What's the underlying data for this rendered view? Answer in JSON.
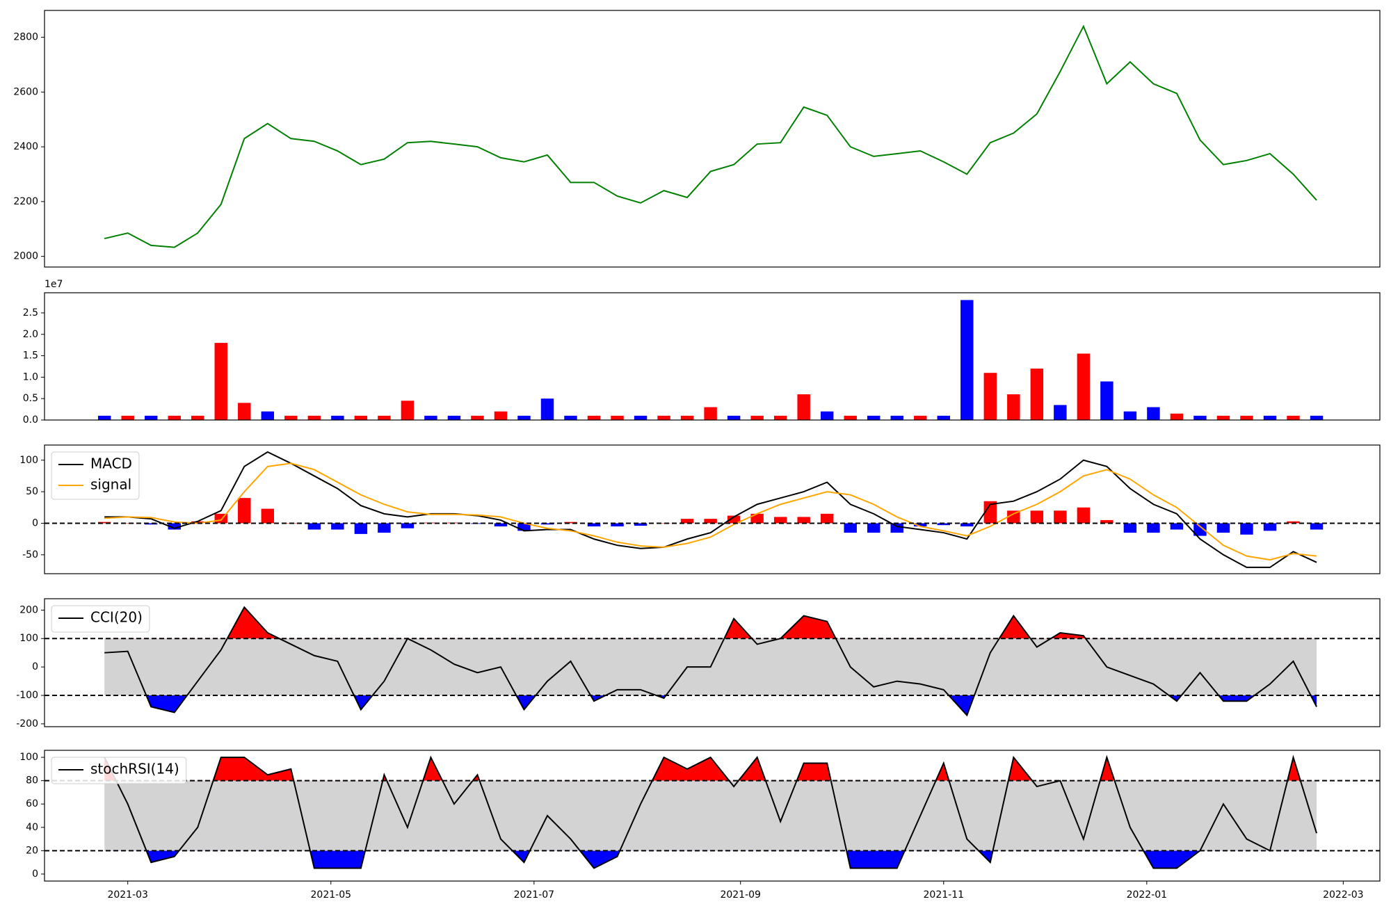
{
  "chart_data": [
    {
      "type": "line",
      "x": [
        "2021-02-22",
        "2021-03-01",
        "2021-03-08",
        "2021-03-15",
        "2021-03-22",
        "2021-03-29",
        "2021-04-05",
        "2021-04-12",
        "2021-04-19",
        "2021-04-26",
        "2021-05-03",
        "2021-05-10",
        "2021-05-17",
        "2021-05-24",
        "2021-05-31",
        "2021-06-07",
        "2021-06-14",
        "2021-06-21",
        "2021-06-28",
        "2021-07-05",
        "2021-07-12",
        "2021-07-19",
        "2021-07-26",
        "2021-08-02",
        "2021-08-09",
        "2021-08-16",
        "2021-08-23",
        "2021-08-30",
        "2021-09-06",
        "2021-09-13",
        "2021-09-20",
        "2021-09-27",
        "2021-10-04",
        "2021-10-11",
        "2021-10-18",
        "2021-10-25",
        "2021-11-01",
        "2021-11-08",
        "2021-11-15",
        "2021-11-22",
        "2021-11-29",
        "2021-12-06",
        "2021-12-13",
        "2021-12-20",
        "2021-12-27",
        "2022-01-03",
        "2022-01-10",
        "2022-01-17",
        "2022-01-24",
        "2022-01-31",
        "2022-02-07",
        "2022-02-14",
        "2022-02-21"
      ],
      "xlim": [
        "2021-02-04",
        "2022-03-12"
      ],
      "ylim": [
        1961,
        2898
      ],
      "yticks": [
        2000,
        2200,
        2400,
        2600,
        2800
      ],
      "series": [
        {
          "color": "green",
          "values": [
            2065,
            2085,
            2040,
            2033,
            2085,
            2190,
            2430,
            2485,
            2430,
            2420,
            2385,
            2335,
            2355,
            2415,
            2420,
            2410,
            2400,
            2360,
            2345,
            2370,
            2270,
            2270,
            2220,
            2195,
            2240,
            2215,
            2310,
            2335,
            2410,
            2415,
            2545,
            2515,
            2400,
            2365,
            2375,
            2385,
            2345,
            2300,
            2415,
            2450,
            2520,
            2675,
            2840,
            2630,
            2710,
            2630,
            2595,
            2425,
            2335,
            2350,
            2375,
            2300,
            2205
          ]
        }
      ]
    },
    {
      "type": "bar",
      "x": [
        "2021-02-22",
        "2021-03-01",
        "2021-03-08",
        "2021-03-15",
        "2021-03-22",
        "2021-03-29",
        "2021-04-05",
        "2021-04-12",
        "2021-04-19",
        "2021-04-26",
        "2021-05-03",
        "2021-05-10",
        "2021-05-17",
        "2021-05-24",
        "2021-05-31",
        "2021-06-07",
        "2021-06-14",
        "2021-06-21",
        "2021-06-28",
        "2021-07-05",
        "2021-07-12",
        "2021-07-19",
        "2021-07-26",
        "2021-08-02",
        "2021-08-09",
        "2021-08-16",
        "2021-08-23",
        "2021-08-30",
        "2021-09-06",
        "2021-09-13",
        "2021-09-20",
        "2021-09-27",
        "2021-10-04",
        "2021-10-11",
        "2021-10-18",
        "2021-10-25",
        "2021-11-01",
        "2021-11-08",
        "2021-11-15",
        "2021-11-22",
        "2021-11-29",
        "2021-12-06",
        "2021-12-13",
        "2021-12-20",
        "2021-12-27",
        "2022-01-03",
        "2022-01-10",
        "2022-01-17",
        "2022-01-24",
        "2022-01-31",
        "2022-02-07",
        "2022-02-14",
        "2022-02-21"
      ],
      "xlim": [
        "2021-02-04",
        "2022-03-12"
      ],
      "ylim": [
        0,
        2.97
      ],
      "yticks": [
        {
          "value": 0,
          "label": "0.0"
        },
        {
          "value": 0.5,
          "label": "0.5"
        },
        {
          "value": 1,
          "label": "1.0"
        },
        {
          "value": 1.5,
          "label": "1.5"
        },
        {
          "value": 2,
          "label": "2.0"
        },
        {
          "value": 2.5,
          "label": "2.5"
        }
      ],
      "offset_label": "1e7",
      "series": [
        {
          "kind": "bar",
          "values": [
            0.1,
            0.1,
            0.1,
            0.1,
            0.1,
            1.8,
            0.4,
            0.2,
            0.1,
            0.1,
            0.1,
            0.1,
            0.1,
            0.45,
            0.1,
            0.1,
            0.1,
            0.2,
            0.1,
            0.5,
            0.1,
            0.1,
            0.1,
            0.1,
            0.1,
            0.1,
            0.3,
            0.1,
            0.1,
            0.1,
            0.6,
            0.2,
            0.1,
            0.1,
            0.1,
            0.1,
            0.1,
            2.8,
            1.1,
            0.6,
            1.2,
            0.35,
            1.55,
            0.9,
            0.2,
            0.3,
            0.15,
            0.1,
            0.1,
            0.1,
            0.1,
            0.1,
            0.1
          ],
          "colors": [
            "blue",
            "red",
            "blue",
            "red",
            "red",
            "red",
            "red",
            "blue",
            "red",
            "red",
            "blue",
            "red",
            "red",
            "red",
            "blue",
            "blue",
            "red",
            "red",
            "blue",
            "blue",
            "blue",
            "red",
            "red",
            "blue",
            "red",
            "red",
            "red",
            "blue",
            "red",
            "red",
            "red",
            "blue",
            "red",
            "blue",
            "blue",
            "red",
            "blue",
            "blue",
            "red",
            "red",
            "red",
            "blue",
            "red",
            "blue",
            "blue",
            "blue",
            "red",
            "blue",
            "red",
            "red",
            "blue",
            "red",
            "blue"
          ]
        }
      ]
    },
    {
      "type": "line",
      "x": [
        "2021-02-22",
        "2021-03-01",
        "2021-03-08",
        "2021-03-15",
        "2021-03-22",
        "2021-03-29",
        "2021-04-05",
        "2021-04-12",
        "2021-04-19",
        "2021-04-26",
        "2021-05-03",
        "2021-05-10",
        "2021-05-17",
        "2021-05-24",
        "2021-05-31",
        "2021-06-07",
        "2021-06-14",
        "2021-06-21",
        "2021-06-28",
        "2021-07-05",
        "2021-07-12",
        "2021-07-19",
        "2021-07-26",
        "2021-08-02",
        "2021-08-09",
        "2021-08-16",
        "2021-08-23",
        "2021-08-30",
        "2021-09-06",
        "2021-09-13",
        "2021-09-20",
        "2021-09-27",
        "2021-10-04",
        "2021-10-11",
        "2021-10-18",
        "2021-10-25",
        "2021-11-01",
        "2021-11-08",
        "2021-11-15",
        "2021-11-22",
        "2021-11-29",
        "2021-12-06",
        "2021-12-13",
        "2021-12-20",
        "2021-12-27",
        "2022-01-03",
        "2022-01-10",
        "2022-01-17",
        "2022-01-24",
        "2022-01-31",
        "2022-02-07",
        "2022-02-14",
        "2022-02-21"
      ],
      "xlim": [
        "2021-02-04",
        "2022-03-12"
      ],
      "ylim": [
        -80,
        124
      ],
      "yticks": [
        -50,
        0,
        50,
        100
      ],
      "hlines": [
        0
      ],
      "legend": "upper left",
      "series": [
        {
          "name": "MACD",
          "kind": "line",
          "color": "black",
          "values": [
            10,
            10,
            7,
            -8,
            3,
            20,
            90,
            113,
            95,
            75,
            55,
            28,
            15,
            10,
            15,
            15,
            12,
            5,
            -12,
            -10,
            -10,
            -25,
            -35,
            -40,
            -38,
            -25,
            -15,
            10,
            30,
            40,
            50,
            65,
            30,
            15,
            -5,
            -10,
            -15,
            -25,
            30,
            35,
            50,
            70,
            100,
            90,
            55,
            30,
            15,
            -25,
            -50,
            -70,
            -70,
            -45,
            -62
          ]
        },
        {
          "name": "signal",
          "kind": "line",
          "color": "orange",
          "values": [
            8,
            10,
            9,
            2,
            0,
            5,
            50,
            90,
            95,
            85,
            65,
            45,
            30,
            18,
            14,
            14,
            13,
            10,
            0,
            -8,
            -12,
            -20,
            -30,
            -36,
            -38,
            -32,
            -22,
            -2,
            15,
            30,
            40,
            50,
            45,
            30,
            10,
            -5,
            -12,
            -20,
            -5,
            15,
            30,
            50,
            75,
            85,
            70,
            45,
            25,
            -5,
            -35,
            -52,
            -58,
            -48,
            -52
          ]
        },
        {
          "kind": "bar",
          "pos_color": "red",
          "neg_color": "blue",
          "values": [
            2,
            0,
            -2,
            -10,
            3,
            15,
            40,
            23,
            0,
            -10,
            -10,
            -17,
            -15,
            -8,
            1,
            1,
            -1,
            -5,
            -12,
            -2,
            2,
            -5,
            -5,
            -4,
            0,
            7,
            7,
            12,
            15,
            10,
            10,
            15,
            -15,
            -15,
            -15,
            -5,
            -3,
            -5,
            35,
            20,
            20,
            20,
            25,
            5,
            -15,
            -15,
            -10,
            -20,
            -15,
            -18,
            -12,
            3,
            -10
          ]
        }
      ]
    },
    {
      "type": "line",
      "x": [
        "2021-02-22",
        "2021-03-01",
        "2021-03-08",
        "2021-03-15",
        "2021-03-22",
        "2021-03-29",
        "2021-04-05",
        "2021-04-12",
        "2021-04-19",
        "2021-04-26",
        "2021-05-03",
        "2021-05-10",
        "2021-05-17",
        "2021-05-24",
        "2021-05-31",
        "2021-06-07",
        "2021-06-14",
        "2021-06-21",
        "2021-06-28",
        "2021-07-05",
        "2021-07-12",
        "2021-07-19",
        "2021-07-26",
        "2021-08-02",
        "2021-08-09",
        "2021-08-16",
        "2021-08-23",
        "2021-08-30",
        "2021-09-06",
        "2021-09-13",
        "2021-09-20",
        "2021-09-27",
        "2021-10-04",
        "2021-10-11",
        "2021-10-18",
        "2021-10-25",
        "2021-11-01",
        "2021-11-08",
        "2021-11-15",
        "2021-11-22",
        "2021-11-29",
        "2021-12-06",
        "2021-12-13",
        "2021-12-20",
        "2021-12-27",
        "2022-01-03",
        "2022-01-10",
        "2022-01-17",
        "2022-01-24",
        "2022-01-31",
        "2022-02-07",
        "2022-02-14",
        "2022-02-21"
      ],
      "xlim": [
        "2021-02-04",
        "2022-03-12"
      ],
      "ylim": [
        -210,
        240
      ],
      "yticks": [
        -200,
        -100,
        0,
        100,
        200
      ],
      "bands": [
        -100,
        100
      ],
      "band_color": "lightgray",
      "upper_color": "red",
      "lower_color": "blue",
      "legend": "upper left",
      "series": [
        {
          "name": "CCI(20)",
          "kind": "line",
          "color": "black",
          "values": [
            50,
            55,
            -140,
            -160,
            -50,
            60,
            210,
            120,
            80,
            40,
            20,
            -150,
            -50,
            100,
            60,
            10,
            -20,
            0,
            -150,
            -50,
            20,
            -120,
            -80,
            -80,
            -110,
            0,
            0,
            170,
            80,
            100,
            180,
            160,
            0,
            -70,
            -50,
            -60,
            -80,
            -170,
            50,
            180,
            70,
            120,
            110,
            0,
            -30,
            -60,
            -120,
            -20,
            -120,
            -120,
            -60,
            20,
            -140
          ]
        }
      ]
    },
    {
      "type": "line",
      "x": [
        "2021-02-22",
        "2021-03-01",
        "2021-03-08",
        "2021-03-15",
        "2021-03-22",
        "2021-03-29",
        "2021-04-05",
        "2021-04-12",
        "2021-04-19",
        "2021-04-26",
        "2021-05-03",
        "2021-05-10",
        "2021-05-17",
        "2021-05-24",
        "2021-05-31",
        "2021-06-07",
        "2021-06-14",
        "2021-06-21",
        "2021-06-28",
        "2021-07-05",
        "2021-07-12",
        "2021-07-19",
        "2021-07-26",
        "2021-08-02",
        "2021-08-09",
        "2021-08-16",
        "2021-08-23",
        "2021-08-30",
        "2021-09-06",
        "2021-09-13",
        "2021-09-20",
        "2021-09-27",
        "2021-10-04",
        "2021-10-11",
        "2021-10-18",
        "2021-10-25",
        "2021-11-01",
        "2021-11-08",
        "2021-11-15",
        "2021-11-22",
        "2021-11-29",
        "2021-12-06",
        "2021-12-13",
        "2021-12-20",
        "2021-12-27",
        "2022-01-03",
        "2022-01-10",
        "2022-01-17",
        "2022-01-24",
        "2022-01-31",
        "2022-02-07",
        "2022-02-14",
        "2022-02-21"
      ],
      "xlim": [
        "2021-02-04",
        "2022-03-12"
      ],
      "xticks": [
        {
          "value": "2021-03-01",
          "label": "2021-03"
        },
        {
          "value": "2021-05-01",
          "label": "2021-05"
        },
        {
          "value": "2021-07-01",
          "label": "2021-07"
        },
        {
          "value": "2021-09-01",
          "label": "2021-09"
        },
        {
          "value": "2021-11-01",
          "label": "2021-11"
        },
        {
          "value": "2022-01-01",
          "label": "2022-01"
        },
        {
          "value": "2022-03-01",
          "label": "2022-03"
        }
      ],
      "ylim": [
        -6,
        106
      ],
      "yticks": [
        0,
        20,
        40,
        60,
        80,
        100
      ],
      "bands": [
        20,
        80
      ],
      "band_color": "lightgray",
      "upper_color": "red",
      "lower_color": "blue",
      "legend": "upper left",
      "series": [
        {
          "name": "stochRSI(14)",
          "kind": "line",
          "color": "black",
          "values": [
            100,
            60,
            10,
            15,
            40,
            100,
            100,
            85,
            90,
            5,
            5,
            5,
            85,
            40,
            100,
            60,
            85,
            30,
            10,
            50,
            30,
            5,
            15,
            60,
            100,
            90,
            100,
            75,
            100,
            45,
            95,
            95,
            5,
            5,
            5,
            50,
            95,
            30,
            10,
            100,
            75,
            80,
            30,
            100,
            40,
            5,
            5,
            20,
            60,
            30,
            20,
            100,
            35
          ]
        }
      ]
    }
  ]
}
